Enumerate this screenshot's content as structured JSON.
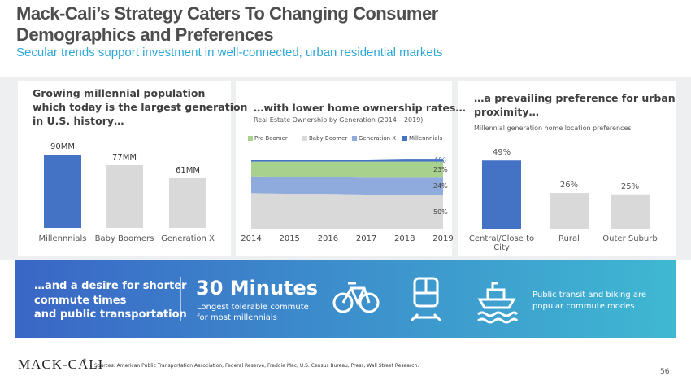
{
  "header": {
    "title": [
      "Mack-Cali’s Strategy Caters To Changing Consumer",
      "Demographics and Preferences"
    ],
    "subtitle": "Secular trends support investment in well-connected, urban residential markets"
  },
  "chart_data": [
    {
      "type": "bar",
      "title": [
        "Growing millennial population",
        "which today is the largest generation",
        "in U.S. history…"
      ],
      "categories": [
        "Millennnials",
        "Baby Boomers",
        "Generation X"
      ],
      "values": [
        90,
        77,
        61
      ],
      "value_labels": [
        "90MM",
        "77MM",
        "61MM"
      ],
      "colors": [
        "#4472c4",
        "#d9d9d9",
        "#d9d9d9"
      ]
    },
    {
      "type": "area",
      "title": "…with lower home ownership rates…",
      "subtitle": "Real Estate Ownership by Generation (2014 – 2019)",
      "x": [
        2014,
        2015,
        2016,
        2017,
        2018,
        2019
      ],
      "series": [
        {
          "name": "Pre-Boomer",
          "color": "#a9d18e",
          "values": [
            21,
            22,
            22,
            23,
            23,
            23
          ],
          "value_labels": [
            null,
            null,
            null,
            null,
            null,
            "23%"
          ]
        },
        {
          "name": "Baby Boomer",
          "color": "#d9d9d9",
          "values": [
            52,
            51,
            51,
            50,
            50,
            50
          ],
          "value_labels": [
            null,
            null,
            null,
            null,
            null,
            "50%"
          ]
        },
        {
          "name": "Generation X",
          "color": "#8faadc",
          "values": [
            24,
            24,
            24,
            24,
            24,
            24
          ],
          "value_labels": [
            null,
            null,
            null,
            null,
            null,
            "24%"
          ]
        },
        {
          "name": "Millennnials",
          "color": "#4472c4",
          "values": [
            3,
            3,
            3,
            3,
            4,
            4
          ],
          "value_labels": [
            null,
            null,
            null,
            null,
            null,
            "4%"
          ]
        }
      ]
    },
    {
      "type": "bar",
      "title": [
        "…a prevailing preference for urban",
        "proximity…"
      ],
      "subtitle": "Millennial generation home location preferences",
      "categories": [
        "Central/Close to City",
        "Rural",
        "Outer Suburb"
      ],
      "values": [
        49,
        26,
        25
      ],
      "value_labels": [
        "49%",
        "26%",
        "25%"
      ],
      "colors": [
        "#4472c4",
        "#d9d9d9",
        "#d9d9d9"
      ]
    }
  ],
  "banner": {
    "left": [
      "…and a desire for shorter",
      "commute times",
      "and public transportation"
    ],
    "headline": "30 Minutes",
    "headline_note": [
      "Longest tolerable commute",
      "for most millennials"
    ],
    "right": [
      "Public transit and biking are",
      "popular commute modes"
    ]
  },
  "footer": {
    "logo": "MACK-CALI",
    "registered": "®",
    "sources": "Sources: American Public Transportation Association, Federal Reserve, Freddie Mac, U.S. Census Bureau, Press, Wall Street Research.",
    "page": "56"
  }
}
